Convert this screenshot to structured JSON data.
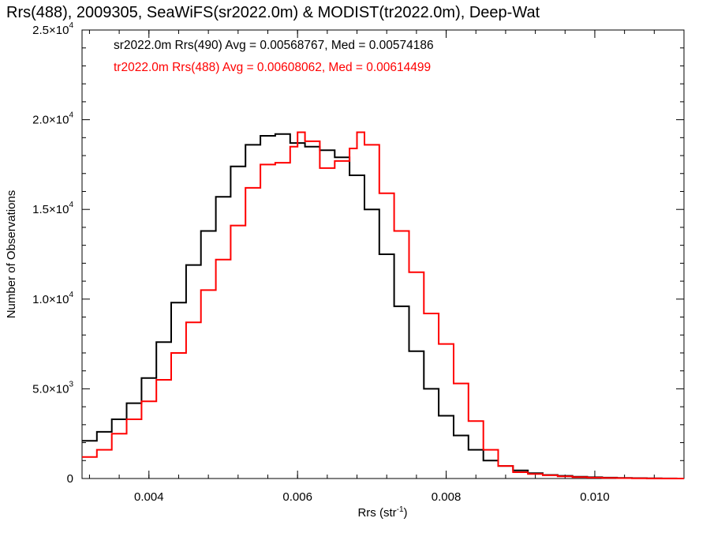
{
  "chart_data": {
    "type": "line",
    "title": "Rrs(488), 2009305, SeaWiFS(sr2022.0m) & MODIST(tr2022.0m), Deep-Wat",
    "xlabel": "Rrs (str",
    "xlabel_sup": "-1",
    "xlabel_close": ")",
    "ylabel": "Number of Observations",
    "xlim": [
      0.0031,
      0.0112
    ],
    "ylim": [
      0,
      25000
    ],
    "grid": false,
    "legend_placement": "top-left",
    "x_ticks": [
      {
        "value": 0.004,
        "label": "0.004"
      },
      {
        "value": 0.006,
        "label": "0.006"
      },
      {
        "value": 0.008,
        "label": "0.008"
      },
      {
        "value": 0.01,
        "label": "0.010"
      }
    ],
    "y_ticks": [
      {
        "value": 0,
        "mant": "0",
        "exp": ""
      },
      {
        "value": 5000,
        "mant": "5.0×10",
        "exp": "3"
      },
      {
        "value": 10000,
        "mant": "1.0×10",
        "exp": "4"
      },
      {
        "value": 15000,
        "mant": "1.5×10",
        "exp": "4"
      },
      {
        "value": 20000,
        "mant": "2.0×10",
        "exp": "4"
      },
      {
        "value": 25000,
        "mant": "2.5×10",
        "exp": "4"
      }
    ],
    "legend": [
      {
        "text": "sr2022.0m Rrs(490) Avg = 0.00568767, Med = 0.00574186",
        "color": "#000000"
      },
      {
        "text": "tr2022.0m Rrs(488) Avg = 0.00608062, Med = 0.00614499",
        "color": "#ff0000"
      }
    ],
    "series": [
      {
        "color": "#000000",
        "x": [
          0.0031,
          0.0033,
          0.0035,
          0.0037,
          0.0039,
          0.0041,
          0.0043,
          0.0045,
          0.0047,
          0.0049,
          0.0051,
          0.0053,
          0.0055,
          0.0057,
          0.0059,
          0.0061,
          0.0063,
          0.0065,
          0.0067,
          0.0069,
          0.0071,
          0.0073,
          0.0075,
          0.0077,
          0.0079,
          0.0081,
          0.0083,
          0.0085,
          0.0087,
          0.0089,
          0.0091,
          0.0093,
          0.0095,
          0.0097,
          0.0099,
          0.0101,
          0.0103,
          0.0105,
          0.0107,
          0.0109,
          0.0111,
          0.0112
        ],
        "y": [
          2100,
          2600,
          3300,
          4200,
          5600,
          7600,
          9800,
          11900,
          13800,
          15700,
          17400,
          18600,
          19100,
          19200,
          18700,
          18500,
          18300,
          17900,
          16900,
          15000,
          12500,
          9600,
          7100,
          5000,
          3500,
          2400,
          1600,
          1000,
          700,
          450,
          300,
          200,
          150,
          100,
          70,
          50,
          30,
          20,
          10,
          5,
          0,
          0
        ]
      },
      {
        "color": "#ff0000",
        "x": [
          0.0031,
          0.0033,
          0.0035,
          0.0037,
          0.0039,
          0.0041,
          0.0043,
          0.0045,
          0.0047,
          0.0049,
          0.0051,
          0.0053,
          0.0055,
          0.0057,
          0.0059,
          0.006,
          0.0061,
          0.0063,
          0.0065,
          0.0067,
          0.0068,
          0.0069,
          0.0071,
          0.0073,
          0.0075,
          0.0077,
          0.0079,
          0.0081,
          0.0083,
          0.0085,
          0.0087,
          0.0089,
          0.0091,
          0.0093,
          0.0095,
          0.0097,
          0.0099,
          0.0101,
          0.0103,
          0.0105,
          0.0107,
          0.0109,
          0.0111,
          0.0112
        ],
        "y": [
          1200,
          1600,
          2500,
          3300,
          4300,
          5500,
          7000,
          8700,
          10500,
          12200,
          14100,
          16200,
          17500,
          17600,
          18500,
          19300,
          18800,
          17300,
          17700,
          18400,
          19300,
          18600,
          15900,
          13800,
          11500,
          9200,
          7500,
          5300,
          3200,
          1600,
          700,
          350,
          250,
          180,
          120,
          80,
          50,
          30,
          20,
          10,
          5,
          0,
          0,
          0
        ]
      }
    ]
  }
}
